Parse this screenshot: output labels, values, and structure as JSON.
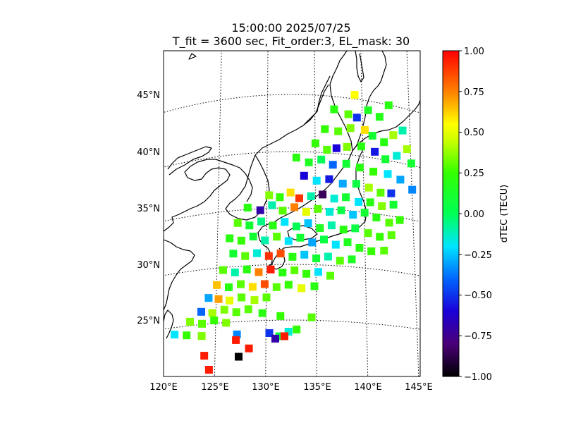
{
  "title": {
    "line1": "15:00:00 2025/07/25",
    "line2": "T_fit = 3600 sec, Fit_order:3, EL_mask: 30"
  },
  "map": {
    "lon_range": [
      120,
      145
    ],
    "lat_range": [
      20,
      49
    ],
    "lon_ticks": [
      "120°E",
      "125°E",
      "130°E",
      "135°E",
      "140°E",
      "145°E"
    ],
    "lat_ticks": [
      "25°N",
      "30°N",
      "35°N",
      "40°N",
      "45°N"
    ],
    "graticule": "dotted"
  },
  "colorbar": {
    "label": "dTEC (TECU)",
    "range": [
      -1.0,
      1.0
    ],
    "ticks": [
      "1.00",
      "0.75",
      "0.50",
      "0.25",
      "0.00",
      "−0.25",
      "−0.50",
      "−0.75",
      "−1.00"
    ],
    "colormap": "nipy_spectral-like",
    "stops": [
      {
        "v": -1.0,
        "c": "#000000"
      },
      {
        "v": -0.8,
        "c": "#4b0078"
      },
      {
        "v": -0.6,
        "c": "#1a00d8"
      },
      {
        "v": -0.4,
        "c": "#0066ff"
      },
      {
        "v": -0.2,
        "c": "#00e5ff"
      },
      {
        "v": 0.0,
        "c": "#00ff55"
      },
      {
        "v": 0.25,
        "c": "#33ff00"
      },
      {
        "v": 0.45,
        "c": "#ccff00"
      },
      {
        "v": 0.55,
        "c": "#ffff00"
      },
      {
        "v": 0.75,
        "c": "#ff8000"
      },
      {
        "v": 1.0,
        "c": "#ff0000"
      }
    ]
  },
  "chart_data": {
    "type": "heatmap",
    "value_label": "dTEC (TECU)",
    "points": [
      {
        "lon": 139.2,
        "lat": 45.4,
        "v": 0.55
      },
      {
        "lon": 142.8,
        "lat": 45.0,
        "v": 0.2
      },
      {
        "lon": 140.6,
        "lat": 44.2,
        "v": 0.15
      },
      {
        "lon": 141.8,
        "lat": 43.8,
        "v": 0.18
      },
      {
        "lon": 137.0,
        "lat": 43.9,
        "v": 0.2
      },
      {
        "lon": 138.5,
        "lat": 43.6,
        "v": 0.3
      },
      {
        "lon": 139.4,
        "lat": 43.4,
        "v": -0.5
      },
      {
        "lon": 144.2,
        "lat": 43.0,
        "v": -0.1
      },
      {
        "lon": 143.2,
        "lat": 42.4,
        "v": 0.4
      },
      {
        "lon": 136.0,
        "lat": 42.1,
        "v": 0.25
      },
      {
        "lon": 137.4,
        "lat": 42.0,
        "v": 0.3
      },
      {
        "lon": 138.7,
        "lat": 42.4,
        "v": 0.35
      },
      {
        "lon": 140.2,
        "lat": 42.4,
        "v": 0.6
      },
      {
        "lon": 141.0,
        "lat": 42.0,
        "v": 0.1
      },
      {
        "lon": 142.2,
        "lat": 41.6,
        "v": 0.2
      },
      {
        "lon": 144.6,
        "lat": 41.4,
        "v": 0.4
      },
      {
        "lon": 145.0,
        "lat": 40.2,
        "v": 0.1
      },
      {
        "lon": 143.5,
        "lat": 40.6,
        "v": -0.15
      },
      {
        "lon": 135.0,
        "lat": 40.8,
        "v": 0.25
      },
      {
        "lon": 136.2,
        "lat": 40.3,
        "v": 0.3
      },
      {
        "lon": 137.2,
        "lat": 40.5,
        "v": -0.6
      },
      {
        "lon": 138.3,
        "lat": 40.7,
        "v": 0.35
      },
      {
        "lon": 139.8,
        "lat": 40.9,
        "v": 0.2
      },
      {
        "lon": 141.2,
        "lat": 40.6,
        "v": -0.55
      },
      {
        "lon": 142.3,
        "lat": 40.1,
        "v": 0.1
      },
      {
        "lon": 133.0,
        "lat": 39.5,
        "v": 0.2
      },
      {
        "lon": 134.3,
        "lat": 39.1,
        "v": 0.15
      },
      {
        "lon": 135.6,
        "lat": 39.4,
        "v": 0.0
      },
      {
        "lon": 136.8,
        "lat": 39.0,
        "v": -0.4
      },
      {
        "lon": 138.2,
        "lat": 39.2,
        "v": 0.1
      },
      {
        "lon": 139.6,
        "lat": 39.0,
        "v": 0.2
      },
      {
        "lon": 141.0,
        "lat": 38.8,
        "v": 0.25
      },
      {
        "lon": 142.5,
        "lat": 38.8,
        "v": -0.2
      },
      {
        "lon": 143.8,
        "lat": 38.5,
        "v": -0.3
      },
      {
        "lon": 145.0,
        "lat": 37.8,
        "v": -0.35
      },
      {
        "lon": 133.8,
        "lat": 37.9,
        "v": -0.6
      },
      {
        "lon": 135.1,
        "lat": 37.5,
        "v": -0.2
      },
      {
        "lon": 136.4,
        "lat": 37.7,
        "v": -0.55
      },
      {
        "lon": 137.8,
        "lat": 37.4,
        "v": -0.3
      },
      {
        "lon": 139.2,
        "lat": 37.5,
        "v": 0.05
      },
      {
        "lon": 140.5,
        "lat": 37.3,
        "v": 0.4
      },
      {
        "lon": 141.7,
        "lat": 37.0,
        "v": 0.3
      },
      {
        "lon": 142.8,
        "lat": 37.1,
        "v": -0.5
      },
      {
        "lon": 130.2,
        "lat": 36.2,
        "v": 0.35
      },
      {
        "lon": 131.3,
        "lat": 36.0,
        "v": 0.25
      },
      {
        "lon": 132.4,
        "lat": 36.4,
        "v": 0.6
      },
      {
        "lon": 133.3,
        "lat": 35.9,
        "v": 0.9
      },
      {
        "lon": 134.5,
        "lat": 36.1,
        "v": -0.1
      },
      {
        "lon": 135.7,
        "lat": 36.3,
        "v": -0.85
      },
      {
        "lon": 136.9,
        "lat": 36.0,
        "v": -0.15
      },
      {
        "lon": 138.1,
        "lat": 36.2,
        "v": 0.1
      },
      {
        "lon": 139.4,
        "lat": 35.9,
        "v": -0.2
      },
      {
        "lon": 140.6,
        "lat": 36.0,
        "v": 0.2
      },
      {
        "lon": 141.8,
        "lat": 35.8,
        "v": 0.35
      },
      {
        "lon": 143.0,
        "lat": 36.1,
        "v": 0.1
      },
      {
        "lon": 128.0,
        "lat": 35.2,
        "v": 0.2
      },
      {
        "lon": 129.3,
        "lat": 34.9,
        "v": -0.7
      },
      {
        "lon": 130.5,
        "lat": 35.3,
        "v": -0.1
      },
      {
        "lon": 131.6,
        "lat": 34.8,
        "v": 0.3
      },
      {
        "lon": 132.8,
        "lat": 35.1,
        "v": 0.75
      },
      {
        "lon": 134.0,
        "lat": 34.7,
        "v": 0.5
      },
      {
        "lon": 135.2,
        "lat": 35.0,
        "v": 0.3
      },
      {
        "lon": 136.4,
        "lat": 34.8,
        "v": -0.15
      },
      {
        "lon": 137.6,
        "lat": 35.0,
        "v": 0.05
      },
      {
        "lon": 138.8,
        "lat": 34.7,
        "v": -0.25
      },
      {
        "lon": 140.0,
        "lat": 35.0,
        "v": 0.1
      },
      {
        "lon": 141.2,
        "lat": 34.7,
        "v": 0.2
      },
      {
        "lon": 142.5,
        "lat": 34.4,
        "v": 0.3
      },
      {
        "lon": 143.6,
        "lat": 34.8,
        "v": 0.25
      },
      {
        "lon": 127.0,
        "lat": 33.9,
        "v": 0.3
      },
      {
        "lon": 128.2,
        "lat": 33.6,
        "v": 0.1
      },
      {
        "lon": 129.4,
        "lat": 33.9,
        "v": -0.05
      },
      {
        "lon": 130.6,
        "lat": 33.5,
        "v": 0.2
      },
      {
        "lon": 131.8,
        "lat": 33.8,
        "v": -0.2
      },
      {
        "lon": 133.0,
        "lat": 33.4,
        "v": 0.0
      },
      {
        "lon": 134.2,
        "lat": 33.7,
        "v": -0.25
      },
      {
        "lon": 135.4,
        "lat": 33.3,
        "v": 0.15
      },
      {
        "lon": 136.6,
        "lat": 33.6,
        "v": -0.1
      },
      {
        "lon": 137.8,
        "lat": 33.3,
        "v": 0.2
      },
      {
        "lon": 139.0,
        "lat": 33.5,
        "v": 0.05
      },
      {
        "lon": 140.3,
        "lat": 33.2,
        "v": 0.3
      },
      {
        "lon": 141.5,
        "lat": 33.0,
        "v": 0.25
      },
      {
        "lon": 142.7,
        "lat": 33.3,
        "v": 0.3
      },
      {
        "lon": 126.2,
        "lat": 32.6,
        "v": 0.2
      },
      {
        "lon": 127.4,
        "lat": 32.3,
        "v": 0.25
      },
      {
        "lon": 128.6,
        "lat": 32.6,
        "v": 0.1
      },
      {
        "lon": 129.8,
        "lat": 32.2,
        "v": -0.1
      },
      {
        "lon": 131.0,
        "lat": 32.5,
        "v": 0.3
      },
      {
        "lon": 132.2,
        "lat": 32.1,
        "v": -0.2
      },
      {
        "lon": 133.4,
        "lat": 32.4,
        "v": 0.1
      },
      {
        "lon": 134.6,
        "lat": 32.0,
        "v": -0.3
      },
      {
        "lon": 135.8,
        "lat": 32.3,
        "v": 0.05
      },
      {
        "lon": 137.0,
        "lat": 31.9,
        "v": -0.2
      },
      {
        "lon": 138.2,
        "lat": 32.2,
        "v": 0.15
      },
      {
        "lon": 139.4,
        "lat": 31.8,
        "v": 0.2
      },
      {
        "lon": 140.6,
        "lat": 31.6,
        "v": 0.25
      },
      {
        "lon": 141.9,
        "lat": 31.8,
        "v": 0.3
      },
      {
        "lon": 126.6,
        "lat": 31.2,
        "v": 0.1
      },
      {
        "lon": 127.8,
        "lat": 30.9,
        "v": 0.3
      },
      {
        "lon": 129.0,
        "lat": 31.1,
        "v": -0.15
      },
      {
        "lon": 130.2,
        "lat": 30.8,
        "v": 0.9
      },
      {
        "lon": 131.4,
        "lat": 31.0,
        "v": 0.85
      },
      {
        "lon": 132.6,
        "lat": 30.7,
        "v": 0.2
      },
      {
        "lon": 133.8,
        "lat": 30.9,
        "v": -0.25
      },
      {
        "lon": 135.0,
        "lat": 30.6,
        "v": 0.1
      },
      {
        "lon": 136.2,
        "lat": 30.8,
        "v": -0.1
      },
      {
        "lon": 137.4,
        "lat": 30.5,
        "v": 0.3
      },
      {
        "lon": 138.6,
        "lat": 30.7,
        "v": 0.15
      },
      {
        "lon": 125.6,
        "lat": 29.8,
        "v": 0.3
      },
      {
        "lon": 126.8,
        "lat": 29.5,
        "v": -0.1
      },
      {
        "lon": 128.0,
        "lat": 29.7,
        "v": 0.2
      },
      {
        "lon": 129.2,
        "lat": 29.4,
        "v": 0.75
      },
      {
        "lon": 130.4,
        "lat": 29.6,
        "v": 0.95
      },
      {
        "lon": 131.6,
        "lat": 29.3,
        "v": 0.2
      },
      {
        "lon": 132.8,
        "lat": 29.5,
        "v": 0.3
      },
      {
        "lon": 134.0,
        "lat": 29.2,
        "v": 0.25
      },
      {
        "lon": 135.2,
        "lat": 29.4,
        "v": -0.2
      },
      {
        "lon": 136.4,
        "lat": 29.1,
        "v": 0.3
      },
      {
        "lon": 125.0,
        "lat": 28.5,
        "v": 0.65
      },
      {
        "lon": 126.2,
        "lat": 28.2,
        "v": 0.2
      },
      {
        "lon": 127.4,
        "lat": 28.4,
        "v": 0.3
      },
      {
        "lon": 128.6,
        "lat": 28.1,
        "v": 0.6
      },
      {
        "lon": 129.8,
        "lat": 28.3,
        "v": 0.85
      },
      {
        "lon": 131.0,
        "lat": 28.0,
        "v": 0.3
      },
      {
        "lon": 132.2,
        "lat": 28.2,
        "v": 0.25
      },
      {
        "lon": 133.5,
        "lat": 27.9,
        "v": 0.5
      },
      {
        "lon": 134.8,
        "lat": 28.1,
        "v": 0.2
      },
      {
        "lon": 124.2,
        "lat": 27.4,
        "v": -0.3
      },
      {
        "lon": 125.2,
        "lat": 27.2,
        "v": 0.7
      },
      {
        "lon": 126.3,
        "lat": 27.0,
        "v": 0.5
      },
      {
        "lon": 127.5,
        "lat": 27.2,
        "v": 0.3
      },
      {
        "lon": 128.8,
        "lat": 26.9,
        "v": 0.4
      },
      {
        "lon": 130.0,
        "lat": 27.1,
        "v": 0.3
      },
      {
        "lon": 123.5,
        "lat": 26.2,
        "v": -0.4
      },
      {
        "lon": 124.6,
        "lat": 26.0,
        "v": 0.4
      },
      {
        "lon": 125.8,
        "lat": 26.2,
        "v": 0.35
      },
      {
        "lon": 127.0,
        "lat": 25.9,
        "v": 0.3
      },
      {
        "lon": 128.2,
        "lat": 26.1,
        "v": 0.3
      },
      {
        "lon": 129.6,
        "lat": 25.7,
        "v": 0.2
      },
      {
        "lon": 122.4,
        "lat": 25.4,
        "v": 0.35
      },
      {
        "lon": 123.6,
        "lat": 25.1,
        "v": 0.3
      },
      {
        "lon": 124.8,
        "lat": 25.3,
        "v": 0.25
      },
      {
        "lon": 126.0,
        "lat": 25.0,
        "v": 0.35
      },
      {
        "lon": 131.4,
        "lat": 25.4,
        "v": 0.25
      },
      {
        "lon": 134.5,
        "lat": 25.3,
        "v": 0.3
      },
      {
        "lon": 120.9,
        "lat": 24.4,
        "v": -0.2
      },
      {
        "lon": 122.1,
        "lat": 24.2,
        "v": 0.25
      },
      {
        "lon": 123.6,
        "lat": 24.0,
        "v": 0.35
      },
      {
        "lon": 127.1,
        "lat": 23.9,
        "v": -0.35
      },
      {
        "lon": 130.3,
        "lat": 23.9,
        "v": -0.5
      },
      {
        "lon": 131.3,
        "lat": 23.6,
        "v": 0.05
      },
      {
        "lon": 132.2,
        "lat": 24.0,
        "v": -0.15
      },
      {
        "lon": 133.0,
        "lat": 24.2,
        "v": 0.25
      },
      {
        "lon": 127.0,
        "lat": 23.4,
        "v": 0.95
      },
      {
        "lon": 130.9,
        "lat": 23.4,
        "v": -0.7
      },
      {
        "lon": 131.8,
        "lat": 23.6,
        "v": 0.95
      },
      {
        "lon": 128.3,
        "lat": 22.6,
        "v": 0.95
      },
      {
        "lon": 123.9,
        "lat": 22.2,
        "v": 0.95
      },
      {
        "lon": 127.3,
        "lat": 21.9,
        "v": -1.0
      },
      {
        "lon": 124.4,
        "lat": 20.9,
        "v": 0.95
      },
      {
        "lon": 121.6,
        "lat": 20.1,
        "v": 0.95
      },
      {
        "lon": 122.4,
        "lat": 20.0,
        "v": 0.85
      }
    ]
  }
}
